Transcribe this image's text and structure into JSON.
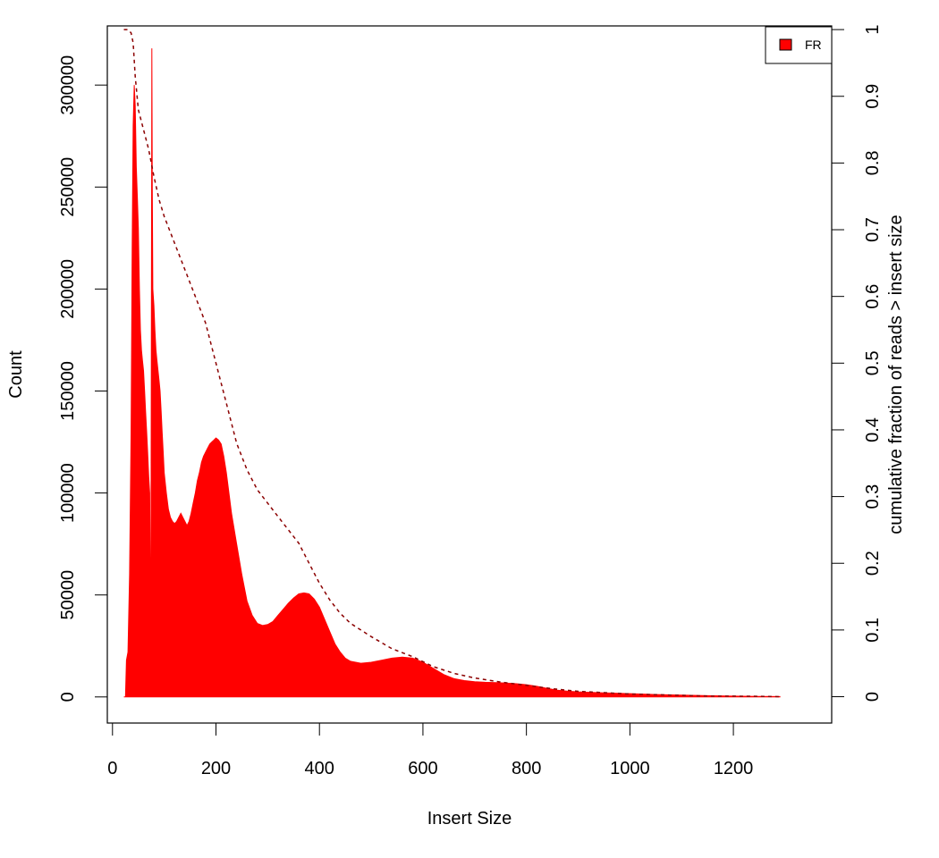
{
  "chart_data": {
    "type": "area",
    "xlabel": "Insert Size",
    "ylabel": "Count",
    "y2label": "cumulative fraction of reads > insert size",
    "xlim": [
      -10,
      1390
    ],
    "ylim": [
      -12800,
      329000
    ],
    "y2lim": [
      -0.0395,
      1.0055
    ],
    "x_ticks": [
      "0",
      "200",
      "400",
      "600",
      "800",
      "1000",
      "1200"
    ],
    "y_ticks": [
      "0",
      "50000",
      "100000",
      "150000",
      "200000",
      "250000",
      "300000"
    ],
    "y2_ticks": [
      "0",
      "0.1",
      "0.2",
      "0.3",
      "0.4",
      "0.5",
      "0.6",
      "0.7",
      "0.8",
      "0.9",
      "1"
    ],
    "grid": false,
    "legend": {
      "position": "top-right",
      "entries": [
        "FR"
      ]
    },
    "colors": {
      "histogram": "#ff0000",
      "cumulative": "#8b0000",
      "legend_swatch": "#ff0000"
    },
    "series": [
      {
        "name": "FR",
        "type": "area",
        "x": [
          22,
          25,
          27,
          30,
          33,
          36,
          38,
          40,
          42,
          44,
          46,
          48,
          50,
          52,
          54,
          56,
          58,
          60,
          62,
          64,
          66,
          68,
          70,
          72,
          74,
          76,
          77,
          78,
          80,
          82,
          84,
          86,
          88,
          90,
          92,
          94,
          96,
          98,
          100,
          104,
          108,
          112,
          116,
          120,
          124,
          128,
          132,
          136,
          140,
          144,
          148,
          152,
          156,
          160,
          164,
          168,
          172,
          176,
          180,
          184,
          188,
          192,
          196,
          200,
          205,
          210,
          215,
          220,
          225,
          230,
          240,
          250,
          260,
          270,
          280,
          290,
          300,
          310,
          320,
          330,
          340,
          350,
          360,
          370,
          380,
          390,
          400,
          410,
          420,
          430,
          440,
          450,
          460,
          480,
          500,
          520,
          540,
          560,
          580,
          600,
          620,
          640,
          660,
          680,
          700,
          720,
          740,
          760,
          780,
          800,
          820,
          840,
          860,
          880,
          900,
          950,
          1000,
          1050,
          1100,
          1150,
          1200,
          1250,
          1290
        ],
        "y": [
          0,
          0,
          18000,
          22000,
          60000,
          130000,
          220000,
          280000,
          300000,
          290000,
          260000,
          245000,
          230000,
          200000,
          180000,
          170000,
          165000,
          160000,
          150000,
          140000,
          130000,
          120000,
          108000,
          100000,
          10000,
          318000,
          250000,
          200000,
          192000,
          180000,
          170000,
          165000,
          160000,
          155000,
          150000,
          140000,
          130000,
          120000,
          110000,
          100000,
          92000,
          88000,
          86000,
          85000,
          86000,
          88000,
          90000,
          88000,
          86000,
          84000,
          86000,
          90000,
          95000,
          100000,
          106000,
          110000,
          115000,
          118000,
          120000,
          122000,
          124000,
          125000,
          126000,
          127000,
          126000,
          124000,
          118000,
          110000,
          100000,
          90000,
          75000,
          60000,
          47000,
          40000,
          36000,
          35000,
          35500,
          37000,
          40000,
          43000,
          46000,
          48500,
          50500,
          51000,
          50500,
          48000,
          44000,
          38000,
          32000,
          26000,
          22000,
          19000,
          17500,
          16500,
          17000,
          18000,
          19000,
          19500,
          19000,
          17000,
          14000,
          11000,
          9000,
          8000,
          7500,
          7200,
          7000,
          6800,
          6500,
          6000,
          5200,
          4200,
          3300,
          2800,
          2500,
          2000,
          1600,
          1200,
          900,
          600,
          400,
          250,
          150
        ]
      },
      {
        "name": "cumulative",
        "type": "line",
        "style": "dashed",
        "x": [
          22,
          30,
          36,
          40,
          44,
          50,
          60,
          70,
          80,
          90,
          100,
          120,
          140,
          160,
          180,
          200,
          220,
          240,
          260,
          280,
          300,
          320,
          340,
          360,
          380,
          400,
          420,
          440,
          460,
          480,
          500,
          540,
          580,
          620,
          660,
          700,
          750,
          800,
          850,
          900,
          950,
          1000,
          1050,
          1100,
          1150,
          1200,
          1250,
          1290
        ],
        "y": [
          1.0,
          1.0,
          0.995,
          0.98,
          0.93,
          0.88,
          0.85,
          0.82,
          0.78,
          0.745,
          0.72,
          0.68,
          0.64,
          0.6,
          0.56,
          0.5,
          0.44,
          0.38,
          0.34,
          0.31,
          0.29,
          0.27,
          0.25,
          0.23,
          0.2,
          0.17,
          0.145,
          0.125,
          0.11,
          0.1,
          0.09,
          0.072,
          0.06,
          0.045,
          0.035,
          0.028,
          0.022,
          0.017,
          0.012,
          0.008,
          0.006,
          0.004,
          0.003,
          0.002,
          0.001,
          0.0008,
          0.0005,
          0.0
        ]
      }
    ]
  }
}
